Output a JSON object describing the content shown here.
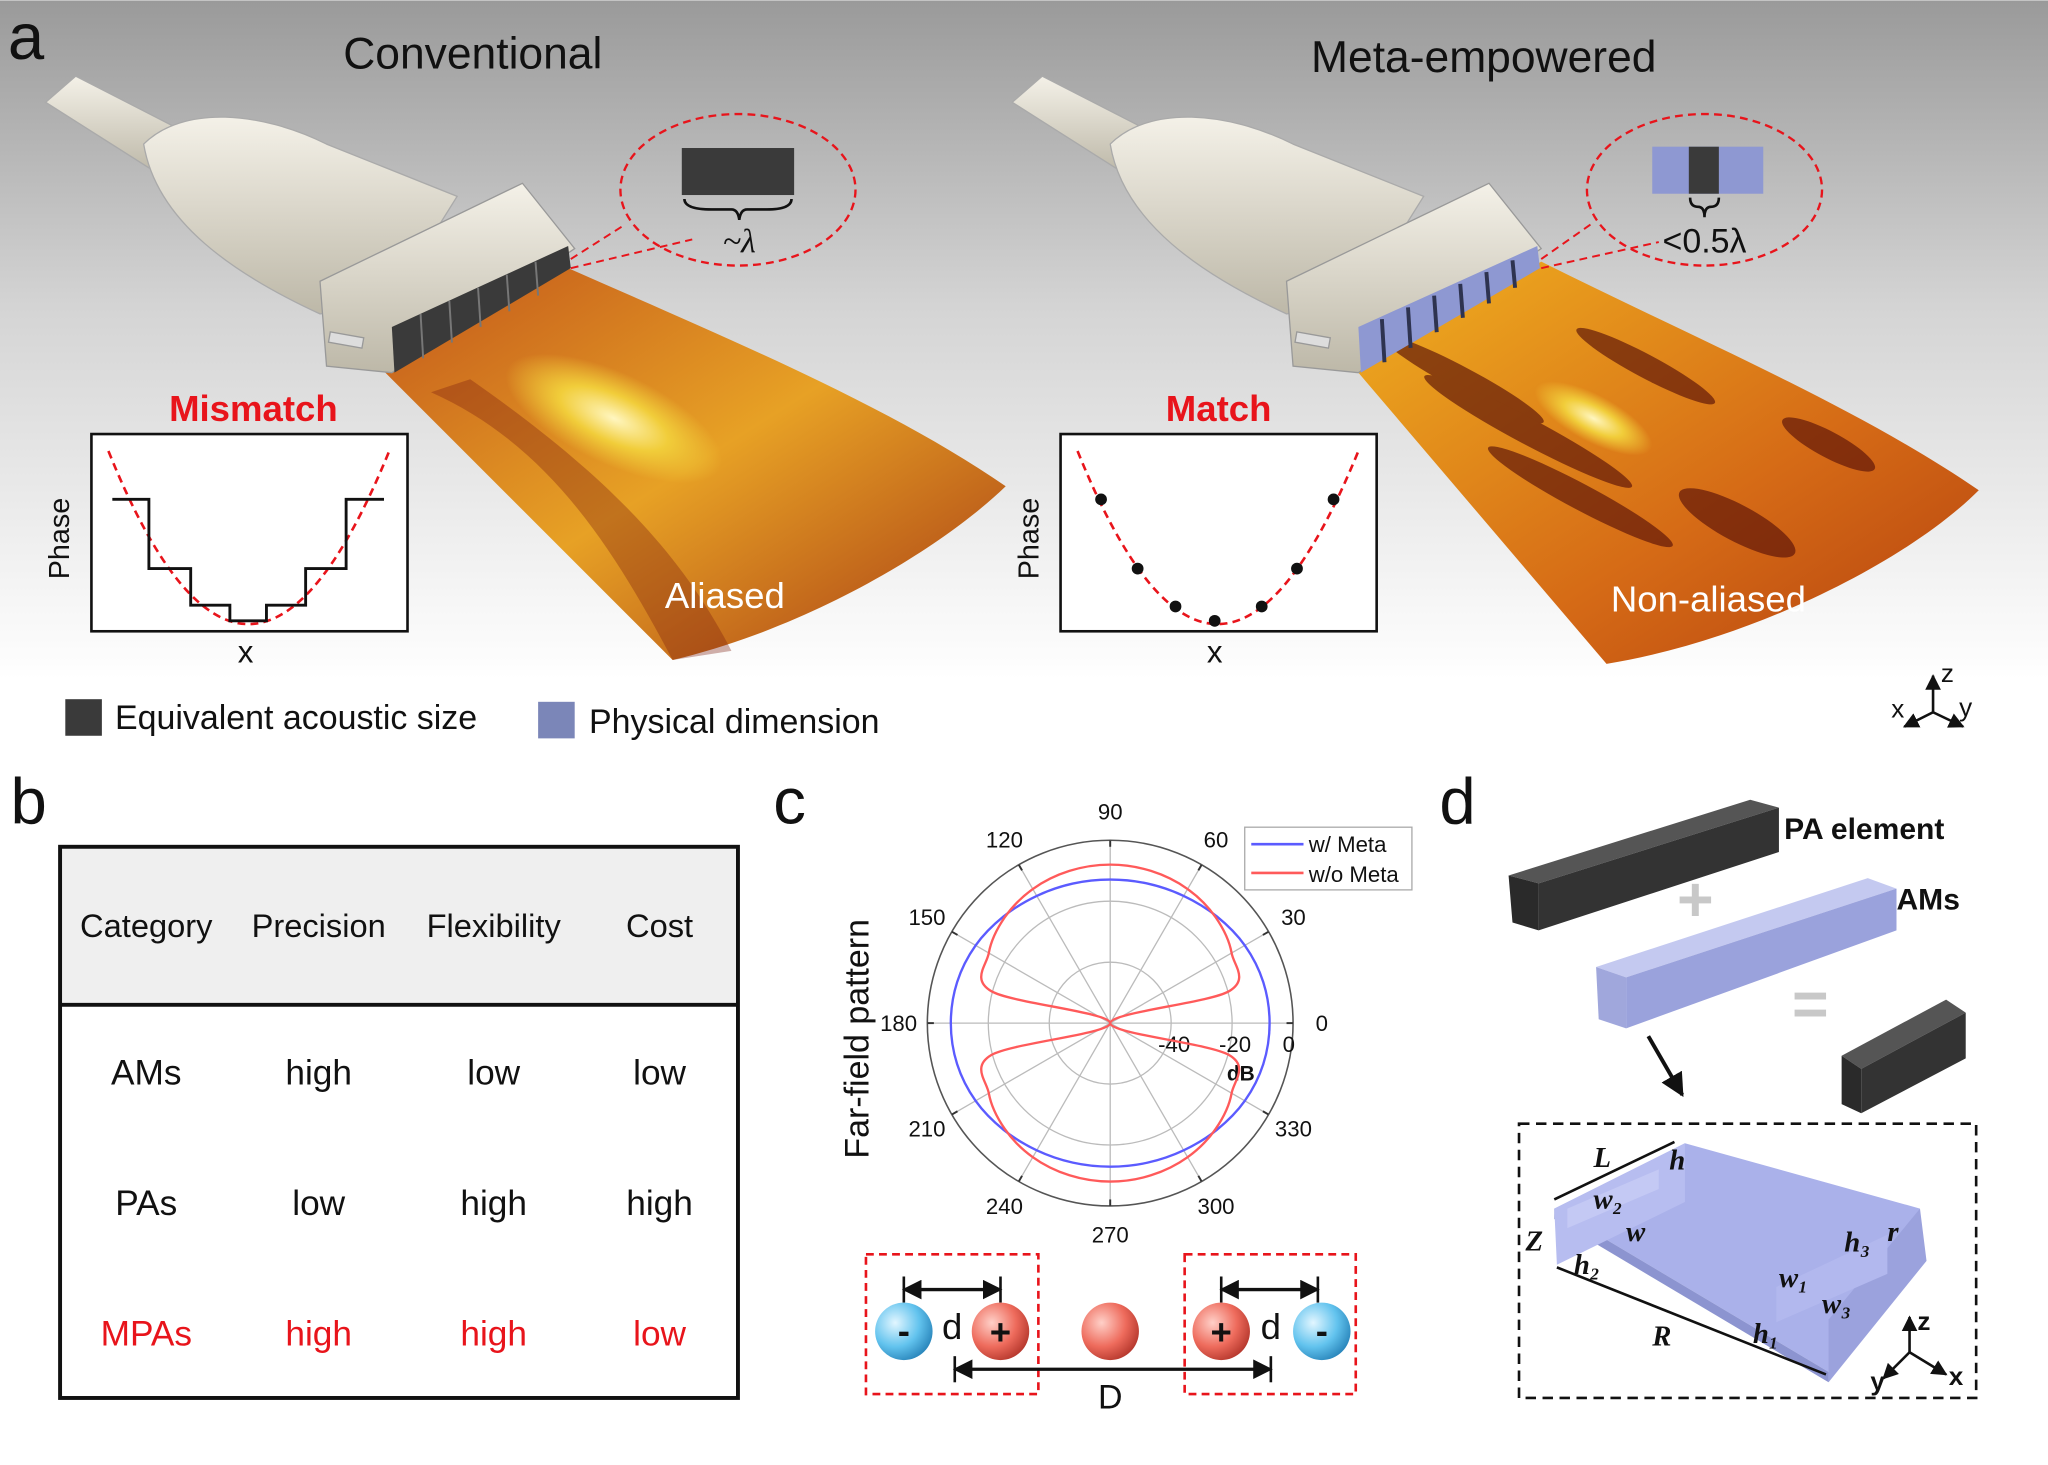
{
  "panel_a": {
    "label": "a",
    "conventional": {
      "title": "Conventional",
      "callout_text": "~λ",
      "inset_title": "Mismatch",
      "inset_ylabel": "Phase",
      "inset_xlabel": "x",
      "beam_label": "Aliased"
    },
    "meta": {
      "title": "Meta-empowered",
      "callout_text": "<0.5λ",
      "inset_title": "Match",
      "inset_ylabel": "Phase",
      "inset_xlabel": "x",
      "beam_label": "Non-aliased"
    },
    "legend": [
      {
        "label": "Equivalent acoustic size",
        "color": "#3a3a3a"
      },
      {
        "label": "Physical dimension",
        "color": "#7b86b8"
      }
    ],
    "axes": {
      "x": "x",
      "y": "y",
      "z": "z"
    },
    "colors": {
      "highlight": "#e8141b",
      "element_dark": "#3a3a3a",
      "element_meta": "#8e98d2"
    }
  },
  "panel_b": {
    "label": "b",
    "table": {
      "headers": [
        "Category",
        "Precision",
        "Flexibility",
        "Cost"
      ],
      "rows": [
        {
          "cells": [
            "AMs",
            "high",
            "low",
            "low"
          ],
          "highlight": false
        },
        {
          "cells": [
            "PAs",
            "low",
            "high",
            "high"
          ],
          "highlight": false
        },
        {
          "cells": [
            "MPAs",
            "high",
            "high",
            "low"
          ],
          "highlight": true
        }
      ]
    }
  },
  "panel_c": {
    "label": "c",
    "dipole": {
      "d_label": "d",
      "D_label": "D",
      "minus": "-",
      "plus": "+"
    }
  },
  "chart_data": {
    "type": "polar",
    "ylabel": "Far-field pattern",
    "radial_unit": "dB",
    "radial_range": [
      -60,
      0
    ],
    "radial_ticks": [
      "-40",
      "-20",
      "0"
    ],
    "angle_ticks": [
      "0",
      "30",
      "60",
      "90",
      "120",
      "150",
      "180",
      "210",
      "240",
      "270",
      "300",
      "330"
    ],
    "grid": true,
    "legend_position": "top-right",
    "angles_deg": [
      0,
      15,
      30,
      45,
      60,
      75,
      90,
      105,
      120,
      135,
      150,
      165,
      180,
      195,
      210,
      225,
      240,
      255,
      270,
      285,
      300,
      315,
      330,
      345
    ],
    "series": [
      {
        "name": "w/ Meta",
        "color": "#5b5bff",
        "values": [
          -7.7,
          -8,
          -9,
          -10.5,
          -11.8,
          -12.6,
          -12.9,
          -12.6,
          -11.8,
          -10.5,
          -9,
          -8,
          -7.7,
          -8,
          -9,
          -10.5,
          -11.8,
          -12.6,
          -12.9,
          -12.6,
          -11.8,
          -10.5,
          -9,
          -8
        ]
      },
      {
        "name": "w/o Meta",
        "color": "#ff5a5a",
        "values": [
          -60,
          -19.7,
          -14,
          -11,
          -9.2,
          -8.3,
          -8,
          -8.3,
          -9.2,
          -11,
          -14,
          -19.7,
          -60,
          -19.7,
          -14,
          -11,
          -9.2,
          -8.3,
          -8,
          -8.3,
          -9.2,
          -11,
          -14,
          -19.7
        ]
      }
    ]
  },
  "panel_d": {
    "label": "d",
    "pa_label": "PA element",
    "ams_label": "AMs",
    "plus": "+",
    "equals": "=",
    "dims": {
      "L": "L",
      "h": "h",
      "w2": "w₂",
      "w": "w",
      "Z": "Z",
      "h2": "h₂",
      "R": "R",
      "h3": "h₃",
      "r": "r",
      "w1": "w₁",
      "w3": "w₃",
      "h1": "h₁"
    },
    "axes": {
      "x": "x",
      "y": "y",
      "z": "z"
    }
  }
}
